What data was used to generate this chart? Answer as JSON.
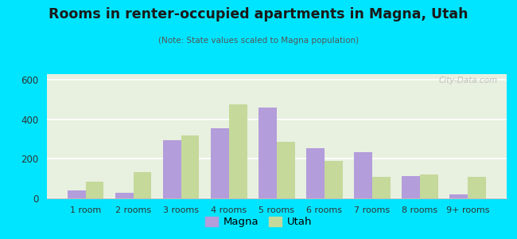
{
  "title": "Rooms in renter-occupied apartments in Magna, Utah",
  "subtitle": "(Note: State values scaled to Magna population)",
  "categories": [
    "1 room",
    "2 rooms",
    "3 rooms",
    "4 rooms",
    "5 rooms",
    "6 rooms",
    "7 rooms",
    "8 rooms",
    "9+ rooms"
  ],
  "magna_values": [
    40,
    30,
    295,
    355,
    460,
    255,
    235,
    115,
    20
  ],
  "utah_values": [
    85,
    135,
    320,
    475,
    285,
    190,
    110,
    120,
    110
  ],
  "magna_color": "#b39ddb",
  "utah_color": "#c5d99a",
  "background_outer": "#00e5ff",
  "plot_bg_color": "#e8f0e0",
  "ylim": [
    0,
    630
  ],
  "yticks": [
    0,
    200,
    400,
    600
  ],
  "bar_width": 0.38,
  "legend_magna": "Magna",
  "legend_utah": "Utah",
  "watermark": "City-Data.com",
  "title_color": "#1a1a1a",
  "subtitle_color": "#555555",
  "tick_color": "#333333"
}
